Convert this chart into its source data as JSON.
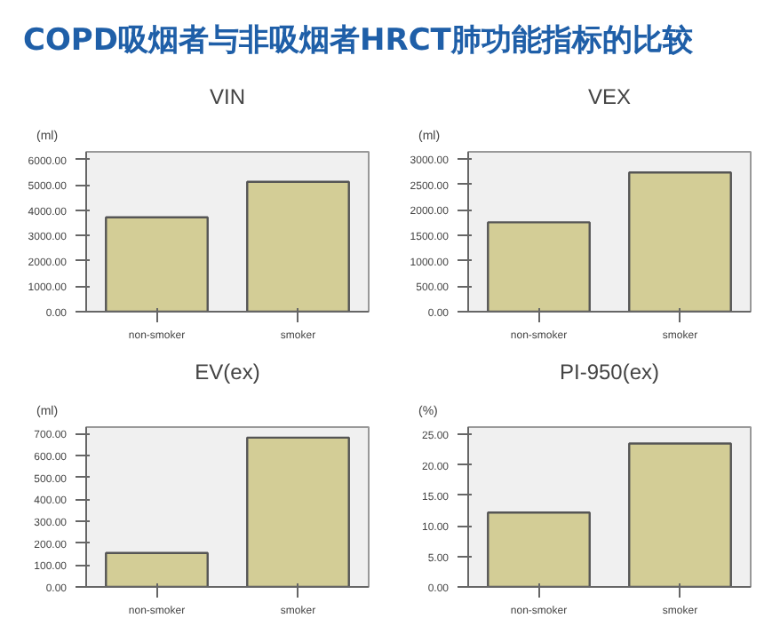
{
  "chart_data": [
    {
      "type": "other",
      "title": "COPD吸烟者与非吸烟者HRCT肺功能指标的比较"
    },
    {
      "type": "bar",
      "title": "VIN",
      "ylabel": "(ml)",
      "categories": [
        "non-smoker",
        "smoker"
      ],
      "values": [
        3720,
        5120
      ],
      "color": "#d3cd96",
      "ylim": [
        0,
        6300
      ],
      "yticks": [
        {
          "value": 0,
          "label": "0.00"
        },
        {
          "value": 1000,
          "label": "1000.00"
        },
        {
          "value": 2000,
          "label": "2000.00"
        },
        {
          "value": 3000,
          "label": "3000.00"
        },
        {
          "value": 4000,
          "label": "4000.00"
        },
        {
          "value": 5000,
          "label": "5000.00"
        },
        {
          "value": 6000,
          "label": "6000.00"
        }
      ],
      "grid": false
    },
    {
      "type": "bar",
      "title": "VEX",
      "ylabel": "(ml)",
      "categories": [
        "non-smoker",
        "smoker"
      ],
      "values": [
        1755,
        2735
      ],
      "color": "#d3cd96",
      "ylim": [
        0,
        3140
      ],
      "yticks": [
        {
          "value": 0,
          "label": "0.00"
        },
        {
          "value": 500,
          "label": "500.00"
        },
        {
          "value": 1000,
          "label": "1000.00"
        },
        {
          "value": 1500,
          "label": "1500.00"
        },
        {
          "value": 2000,
          "label": "2000.00"
        },
        {
          "value": 2500,
          "label": "2500.00"
        },
        {
          "value": 3000,
          "label": "3000.00"
        }
      ],
      "grid": false
    },
    {
      "type": "bar",
      "title": "EV(ex)",
      "ylabel": "(ml)",
      "categories": [
        "non-smoker",
        "smoker"
      ],
      "values": [
        155,
        682
      ],
      "color": "#d3cd96",
      "ylim": [
        0,
        730
      ],
      "yticks": [
        {
          "value": 0,
          "label": "0.00"
        },
        {
          "value": 100,
          "label": "100.00"
        },
        {
          "value": 200,
          "label": "200.00"
        },
        {
          "value": 300,
          "label": "300.00"
        },
        {
          "value": 400,
          "label": "400.00"
        },
        {
          "value": 500,
          "label": "500.00"
        },
        {
          "value": 600,
          "label": "600.00"
        },
        {
          "value": 700,
          "label": "700.00"
        }
      ],
      "grid": false
    },
    {
      "type": "bar",
      "title": "PI-950(ex)",
      "ylabel": "(%)",
      "categories": [
        "non-smoker",
        "smoker"
      ],
      "values": [
        12.2,
        23.5
      ],
      "color": "#d3cd96",
      "ylim": [
        0,
        26.2
      ],
      "yticks": [
        {
          "value": 0,
          "label": "0.00"
        },
        {
          "value": 5,
          "label": "5.00"
        },
        {
          "value": 10,
          "label": "10.00"
        },
        {
          "value": 15,
          "label": "15.00"
        },
        {
          "value": 20,
          "label": "20.00"
        },
        {
          "value": 25,
          "label": "25.00"
        }
      ],
      "grid": false
    }
  ]
}
